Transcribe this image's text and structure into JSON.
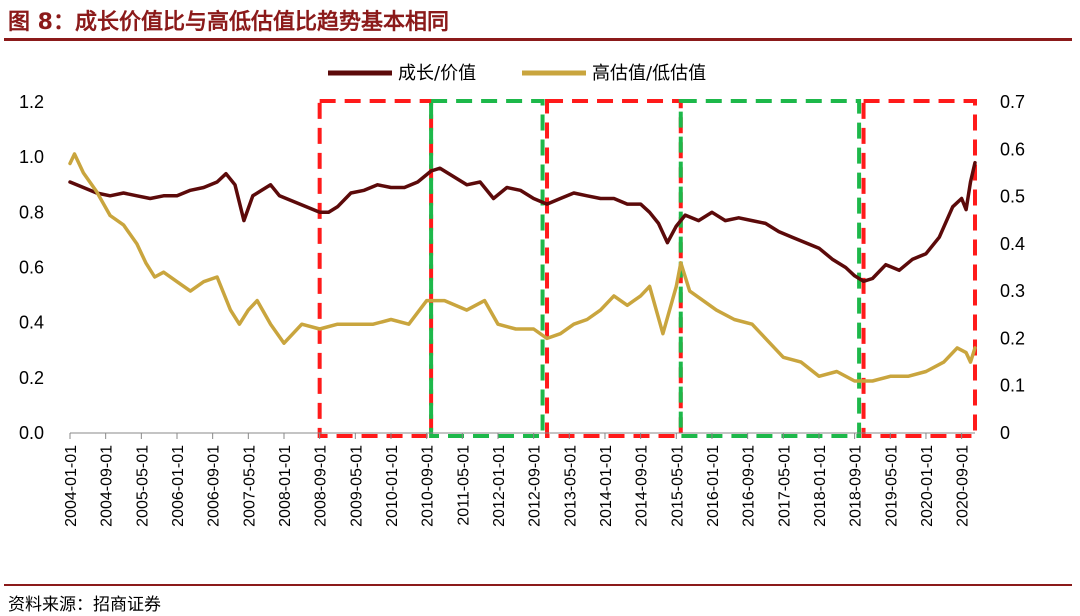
{
  "header": {
    "title": "图 8：成长价值比与高低估值比趋势基本相同"
  },
  "footer": {
    "source": "资料来源：招商证券"
  },
  "colors": {
    "growth_value": "#5C0A0A",
    "high_low": "#C9A53E",
    "red_box": "#FF1A1A",
    "green_box": "#1DB84A",
    "title": "#8B1A1A"
  },
  "chart_data": {
    "type": "line",
    "x_start": "2004-01",
    "x_end": "2020-12",
    "x_tick_labels": [
      "2004-01-01",
      "2004-09-01",
      "2005-05-01",
      "2006-01-01",
      "2006-09-01",
      "2007-05-01",
      "2008-01-01",
      "2008-09-01",
      "2009-05-01",
      "2010-01-01",
      "2010-09-01",
      "2011-05-01",
      "2012-01-01",
      "2012-09-01",
      "2013-05-01",
      "2014-01-01",
      "2014-09-01",
      "2015-05-01",
      "2016-01-01",
      "2016-09-01",
      "2017-05-01",
      "2018-01-01",
      "2018-09-01",
      "2019-05-01",
      "2020-01-01",
      "2020-09-01"
    ],
    "left_axis": {
      "min": 0,
      "max": 1.2,
      "ticks": [
        "0.0",
        "0.2",
        "0.4",
        "0.6",
        "0.8",
        "1.0",
        "1.2"
      ]
    },
    "right_axis": {
      "min": 0,
      "max": 0.7,
      "ticks": [
        "0",
        "0.1",
        "0.2",
        "0.3",
        "0.4",
        "0.5",
        "0.6",
        "0.7"
      ]
    },
    "legend_position": "top-center",
    "series": [
      {
        "name": "成长/价值",
        "axis": "left",
        "points": [
          [
            "2004-01",
            0.91
          ],
          [
            "2004-04",
            0.89
          ],
          [
            "2004-07",
            0.87
          ],
          [
            "2004-10",
            0.86
          ],
          [
            "2005-01",
            0.87
          ],
          [
            "2005-04",
            0.86
          ],
          [
            "2005-07",
            0.85
          ],
          [
            "2005-10",
            0.86
          ],
          [
            "2006-01",
            0.86
          ],
          [
            "2006-04",
            0.88
          ],
          [
            "2006-07",
            0.89
          ],
          [
            "2006-10",
            0.91
          ],
          [
            "2006-12",
            0.94
          ],
          [
            "2007-02",
            0.9
          ],
          [
            "2007-04",
            0.77
          ],
          [
            "2007-06",
            0.86
          ],
          [
            "2007-08",
            0.88
          ],
          [
            "2007-10",
            0.9
          ],
          [
            "2007-12",
            0.86
          ],
          [
            "2008-03",
            0.84
          ],
          [
            "2008-06",
            0.82
          ],
          [
            "2008-09",
            0.8
          ],
          [
            "2008-11",
            0.8
          ],
          [
            "2009-01",
            0.82
          ],
          [
            "2009-04",
            0.87
          ],
          [
            "2009-07",
            0.88
          ],
          [
            "2009-10",
            0.9
          ],
          [
            "2010-01",
            0.89
          ],
          [
            "2010-04",
            0.89
          ],
          [
            "2010-07",
            0.91
          ],
          [
            "2010-10",
            0.95
          ],
          [
            "2010-12",
            0.96
          ],
          [
            "2011-03",
            0.93
          ],
          [
            "2011-06",
            0.9
          ],
          [
            "2011-09",
            0.91
          ],
          [
            "2011-12",
            0.85
          ],
          [
            "2012-03",
            0.89
          ],
          [
            "2012-06",
            0.88
          ],
          [
            "2012-09",
            0.85
          ],
          [
            "2012-12",
            0.83
          ],
          [
            "2013-03",
            0.85
          ],
          [
            "2013-06",
            0.87
          ],
          [
            "2013-09",
            0.86
          ],
          [
            "2013-12",
            0.85
          ],
          [
            "2014-03",
            0.85
          ],
          [
            "2014-06",
            0.83
          ],
          [
            "2014-09",
            0.83
          ],
          [
            "2014-11",
            0.8
          ],
          [
            "2015-01",
            0.76
          ],
          [
            "2015-03",
            0.69
          ],
          [
            "2015-05",
            0.75
          ],
          [
            "2015-07",
            0.79
          ],
          [
            "2015-10",
            0.77
          ],
          [
            "2016-01",
            0.8
          ],
          [
            "2016-04",
            0.77
          ],
          [
            "2016-07",
            0.78
          ],
          [
            "2016-10",
            0.77
          ],
          [
            "2017-01",
            0.76
          ],
          [
            "2017-04",
            0.73
          ],
          [
            "2017-07",
            0.71
          ],
          [
            "2017-10",
            0.69
          ],
          [
            "2018-01",
            0.67
          ],
          [
            "2018-04",
            0.63
          ],
          [
            "2018-07",
            0.6
          ],
          [
            "2018-09",
            0.57
          ],
          [
            "2018-11",
            0.55
          ],
          [
            "2019-01",
            0.56
          ],
          [
            "2019-04",
            0.61
          ],
          [
            "2019-07",
            0.59
          ],
          [
            "2019-10",
            0.63
          ],
          [
            "2020-01",
            0.65
          ],
          [
            "2020-04",
            0.71
          ],
          [
            "2020-07",
            0.82
          ],
          [
            "2020-09",
            0.85
          ],
          [
            "2020-10",
            0.81
          ],
          [
            "2020-11",
            0.91
          ],
          [
            "2020-12",
            0.98
          ]
        ]
      },
      {
        "name": "高估值/低估值",
        "axis": "right",
        "points": [
          [
            "2004-01",
            0.57
          ],
          [
            "2004-02",
            0.59
          ],
          [
            "2004-04",
            0.55
          ],
          [
            "2004-07",
            0.51
          ],
          [
            "2004-10",
            0.46
          ],
          [
            "2005-01",
            0.44
          ],
          [
            "2005-04",
            0.4
          ],
          [
            "2005-06",
            0.36
          ],
          [
            "2005-08",
            0.33
          ],
          [
            "2005-10",
            0.34
          ],
          [
            "2006-01",
            0.32
          ],
          [
            "2006-04",
            0.3
          ],
          [
            "2006-07",
            0.32
          ],
          [
            "2006-10",
            0.33
          ],
          [
            "2007-01",
            0.26
          ],
          [
            "2007-03",
            0.23
          ],
          [
            "2007-05",
            0.26
          ],
          [
            "2007-07",
            0.28
          ],
          [
            "2007-10",
            0.23
          ],
          [
            "2008-01",
            0.19
          ],
          [
            "2008-05",
            0.23
          ],
          [
            "2008-09",
            0.22
          ],
          [
            "2009-01",
            0.23
          ],
          [
            "2009-05",
            0.23
          ],
          [
            "2009-09",
            0.23
          ],
          [
            "2010-01",
            0.24
          ],
          [
            "2010-05",
            0.23
          ],
          [
            "2010-09",
            0.28
          ],
          [
            "2011-01",
            0.28
          ],
          [
            "2011-06",
            0.26
          ],
          [
            "2011-10",
            0.28
          ],
          [
            "2012-01",
            0.23
          ],
          [
            "2012-05",
            0.22
          ],
          [
            "2012-09",
            0.22
          ],
          [
            "2012-12",
            0.2
          ],
          [
            "2013-03",
            0.21
          ],
          [
            "2013-06",
            0.23
          ],
          [
            "2013-09",
            0.24
          ],
          [
            "2013-12",
            0.26
          ],
          [
            "2014-03",
            0.29
          ],
          [
            "2014-06",
            0.27
          ],
          [
            "2014-09",
            0.29
          ],
          [
            "2014-11",
            0.31
          ],
          [
            "2015-02",
            0.21
          ],
          [
            "2015-05",
            0.31
          ],
          [
            "2015-06",
            0.36
          ],
          [
            "2015-08",
            0.3
          ],
          [
            "2015-11",
            0.28
          ],
          [
            "2016-02",
            0.26
          ],
          [
            "2016-06",
            0.24
          ],
          [
            "2016-10",
            0.23
          ],
          [
            "2017-01",
            0.2
          ],
          [
            "2017-05",
            0.16
          ],
          [
            "2017-09",
            0.15
          ],
          [
            "2018-01",
            0.12
          ],
          [
            "2018-05",
            0.13
          ],
          [
            "2018-09",
            0.11
          ],
          [
            "2019-01",
            0.11
          ],
          [
            "2019-05",
            0.12
          ],
          [
            "2019-09",
            0.12
          ],
          [
            "2020-01",
            0.13
          ],
          [
            "2020-05",
            0.15
          ],
          [
            "2020-08",
            0.18
          ],
          [
            "2020-10",
            0.17
          ],
          [
            "2020-11",
            0.15
          ],
          [
            "2020-12",
            0.18
          ]
        ]
      }
    ],
    "regions": [
      {
        "color": "red",
        "start": "2008-09",
        "end": "2010-10"
      },
      {
        "color": "green",
        "start": "2010-10",
        "end": "2012-11"
      },
      {
        "color": "red",
        "start": "2012-12",
        "end": "2015-06"
      },
      {
        "color": "green",
        "start": "2015-06",
        "end": "2018-10"
      },
      {
        "color": "red",
        "start": "2018-11",
        "end": "2020-12"
      }
    ]
  }
}
